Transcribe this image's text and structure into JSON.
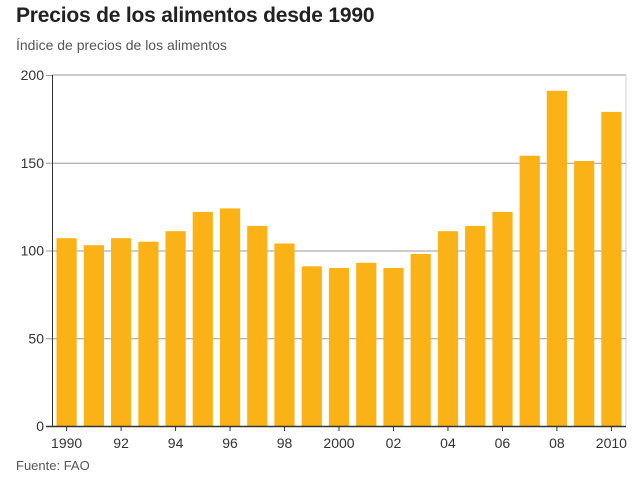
{
  "title": "Precios de los alimentos desde 1990",
  "subtitle": "Índice de precios de los alimentos",
  "source": "Fuente: FAO",
  "colors": {
    "bar": "#fbb216",
    "grid": "#9a9a9a",
    "axis": "#333333",
    "frame": "#cfcfcf"
  },
  "chart_data": {
    "type": "bar",
    "title": "Precios de los alimentos desde 1990",
    "ylabel": "Índice de precios de los alimentos",
    "xlabel": "",
    "ylim": [
      0,
      200
    ],
    "yticks": [
      0,
      50,
      100,
      150,
      200
    ],
    "grid": true,
    "categories": [
      "1990",
      "1991",
      "1992",
      "1993",
      "1994",
      "1995",
      "1996",
      "1997",
      "1998",
      "1999",
      "2000",
      "2001",
      "2002",
      "2003",
      "2004",
      "2005",
      "2006",
      "2007",
      "2008",
      "2009",
      "2010"
    ],
    "xtick_labels": [
      "1990",
      "",
      "92",
      "",
      "94",
      "",
      "96",
      "",
      "98",
      "",
      "2000",
      "",
      "02",
      "",
      "04",
      "",
      "06",
      "",
      "08",
      "",
      "2010"
    ],
    "values": [
      107,
      103,
      107,
      105,
      111,
      122,
      124,
      114,
      104,
      91,
      90,
      93,
      90,
      98,
      111,
      114,
      122,
      154,
      191,
      151,
      179
    ]
  }
}
